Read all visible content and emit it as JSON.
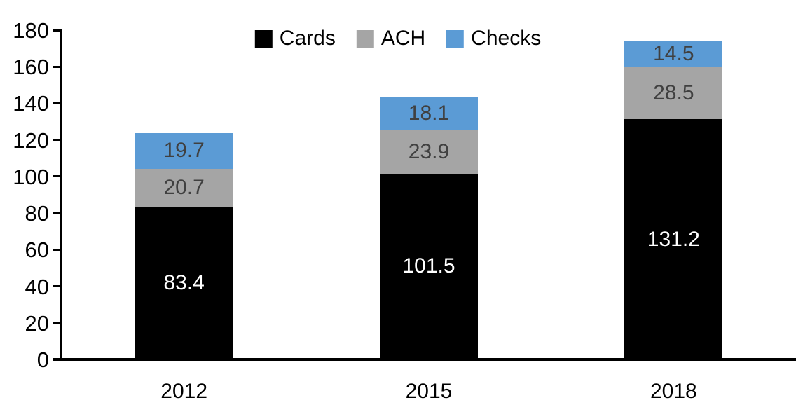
{
  "chart_data": {
    "type": "bar",
    "stacked": true,
    "title": "",
    "xlabel": "",
    "ylabel": "",
    "categories": [
      "2012",
      "2015",
      "2018"
    ],
    "series": [
      {
        "name": "Cards",
        "color": "#000000",
        "label_color": "#ffffff",
        "values": [
          83.4,
          101.5,
          131.2
        ],
        "labels": [
          "83.4",
          "101.5",
          "131.2"
        ]
      },
      {
        "name": "ACH",
        "color": "#a5a5a5",
        "label_color": "#404040",
        "values": [
          20.7,
          23.9,
          28.5
        ],
        "labels": [
          "20.7",
          "23.9",
          "28.5"
        ]
      },
      {
        "name": "Checks",
        "color": "#5b9bd5",
        "label_color": "#404040",
        "values": [
          19.7,
          18.1,
          14.5
        ],
        "labels": [
          "19.7",
          "18.1",
          "14.5"
        ]
      }
    ],
    "ylim": [
      0,
      180
    ],
    "yticks": [
      0,
      20,
      40,
      60,
      80,
      100,
      120,
      140,
      160,
      180
    ],
    "grid": false,
    "legend_position": "top-center",
    "axis_color": "#000000"
  }
}
